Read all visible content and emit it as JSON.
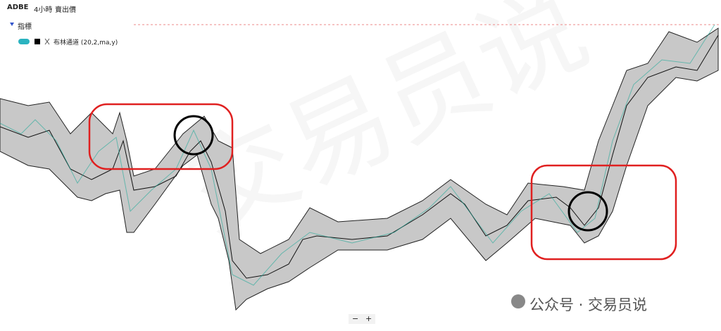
{
  "header": {
    "symbol": "ADBE",
    "interval": "4小時",
    "price_type": "賣出價"
  },
  "indicators": {
    "title": "指標",
    "items": [
      "布林通道 (20,2,ma,y)"
    ]
  },
  "background_watermark": "交易员说",
  "watermark": "公众号 · 交易员说",
  "zoom": {
    "out": "−",
    "in": "+"
  }
}
